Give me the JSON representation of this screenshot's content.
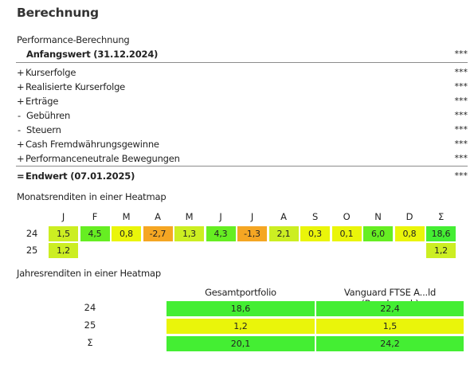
{
  "title": "Berechnung",
  "performance": {
    "header": "Performance-Berechnung",
    "start": {
      "label": "Anfangswert (31.12.2024)",
      "value": "***"
    },
    "items": [
      {
        "sign": "+",
        "label": "Kurserfolge",
        "value": "***"
      },
      {
        "sign": "+",
        "label": "Realisierte Kurserfolge",
        "value": "***"
      },
      {
        "sign": "+",
        "label": "Erträge",
        "value": "***"
      },
      {
        "sign": "-",
        "label": "Gebühren",
        "value": "***"
      },
      {
        "sign": "-",
        "label": "Steuern",
        "value": "***"
      },
      {
        "sign": "+",
        "label": "Cash Fremdwährungsgewinne",
        "value": "***"
      },
      {
        "sign": "+",
        "label": "Performanceneutrale Bewegungen",
        "value": "***"
      }
    ],
    "end": {
      "sign": "=",
      "label": "Endwert (07.01.2025)",
      "value": "***"
    }
  },
  "monthly": {
    "title": "Monatsrenditen in einer Heatmap",
    "columns": [
      "J",
      "F",
      "M",
      "A",
      "M",
      "J",
      "J",
      "A",
      "S",
      "O",
      "N",
      "D",
      "Σ"
    ],
    "rows": [
      {
        "year": "24",
        "values": [
          "1,5",
          "4,5",
          "0,8",
          "-2,7",
          "1,3",
          "4,3",
          "-1,3",
          "2,1",
          "0,3",
          "0,1",
          "6,0",
          "0,8",
          "18,6"
        ]
      },
      {
        "year": "25",
        "values": [
          "1,2",
          "",
          "",
          "",
          "",
          "",
          "",
          "",
          "",
          "",
          "",
          "",
          "1,2"
        ]
      }
    ],
    "colors": {
      "orange": "#f5a623",
      "lime": "#ccee22",
      "yellow": "#eaf50a",
      "green": "#66ee22",
      "bright_green": "#44ee33"
    }
  },
  "yearly": {
    "title": "Jahresrenditen in einer Heatmap",
    "columns": [
      "Gesamtportfolio",
      "Vanguard FTSE A...ld  (Benchmark)"
    ],
    "rows": [
      {
        "label": "24",
        "values": [
          "18,6",
          "22,4"
        ]
      },
      {
        "label": "25",
        "values": [
          "1,2",
          "1,5"
        ]
      },
      {
        "label": "Σ",
        "values": [
          "20,1",
          "24,2"
        ]
      }
    ]
  }
}
